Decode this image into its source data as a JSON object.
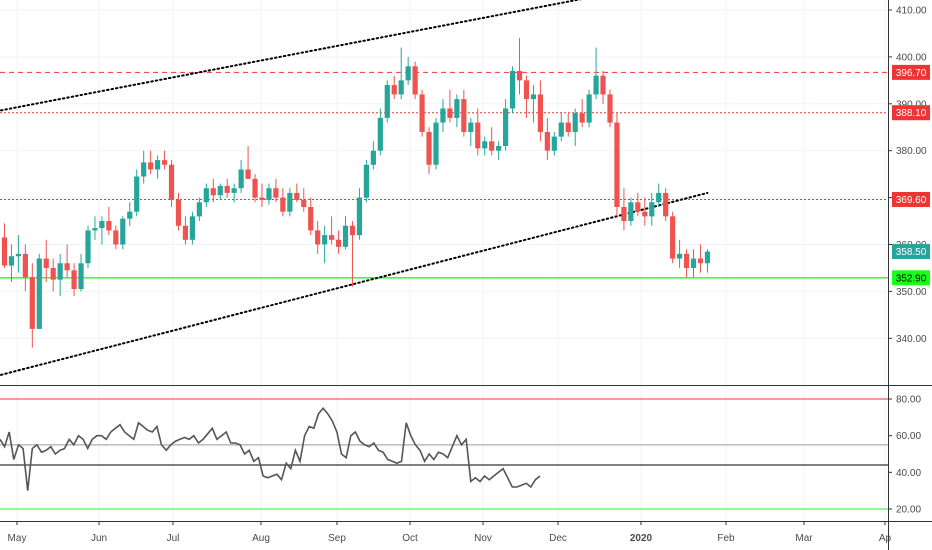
{
  "chart_data": [
    {
      "type": "candlestick",
      "x_axis_labels": [
        "May",
        "Jun",
        "Jul",
        "Aug",
        "Sep",
        "Oct",
        "Nov",
        "Dec",
        "2020",
        "Feb",
        "Mar",
        "Ap"
      ],
      "y_ticks": [
        340,
        350,
        360,
        370,
        380,
        390,
        400,
        410
      ],
      "ylim": [
        330,
        412
      ],
      "price_badges": [
        {
          "value": "396.70",
          "color": "#ef3434"
        },
        {
          "value": "388.10",
          "color": "#ef3434"
        },
        {
          "value": "369.60",
          "color": "#ef3434"
        },
        {
          "value": "358.50",
          "color": "#26a69a"
        },
        {
          "value": "352.90",
          "color": "#1aff1a"
        }
      ],
      "horizontal_lines": [
        {
          "value": 396.7,
          "color": "#ef3434",
          "style": "dashed"
        },
        {
          "value": 388.1,
          "color": "#ef3434",
          "style": "dotted"
        },
        {
          "value": 369.6,
          "color": "#ef3434",
          "style": "dotted"
        },
        {
          "value": 352.9,
          "color": "#1aff1a",
          "style": "solid"
        }
      ],
      "trend_lines": [
        {
          "from": [
            0,
            388.6
          ],
          "to": [
            87,
            413.5
          ]
        },
        {
          "from": [
            0,
            332.2
          ],
          "to": [
            101,
            371.0
          ]
        }
      ],
      "candles": [
        [
          361.5,
          364.5,
          355.0,
          355.5
        ],
        [
          355.5,
          360.0,
          352.0,
          357.5
        ],
        [
          357.5,
          362.0,
          354.0,
          358.0
        ],
        [
          358.0,
          360.0,
          350.0,
          353.0
        ],
        [
          353.0,
          356.0,
          338.0,
          342.0
        ],
        [
          342.0,
          358.0,
          342.0,
          357.0
        ],
        [
          357.0,
          361.0,
          352.0,
          355.0
        ],
        [
          355.0,
          357.0,
          350.0,
          352.5
        ],
        [
          352.5,
          358.0,
          349.0,
          356.0
        ],
        [
          356.0,
          360.0,
          353.0,
          354.5
        ],
        [
          354.5,
          356.0,
          349.0,
          350.5
        ],
        [
          350.5,
          358.0,
          350.0,
          356.0
        ],
        [
          356.0,
          364.0,
          355.0,
          363.0
        ],
        [
          363.0,
          366.0,
          361.0,
          363.5
        ],
        [
          363.5,
          366.0,
          360.0,
          365.0
        ],
        [
          365.0,
          368.0,
          362.0,
          363.0
        ],
        [
          363.0,
          364.0,
          359.0,
          360.0
        ],
        [
          360.0,
          366.0,
          359.0,
          365.5
        ],
        [
          365.5,
          369.0,
          364.0,
          367.0
        ],
        [
          367.0,
          376.0,
          366.0,
          374.5
        ],
        [
          374.5,
          380.0,
          373.0,
          377.5
        ],
        [
          377.5,
          380.0,
          375.0,
          376.0
        ],
        [
          376.0,
          379.0,
          374.0,
          378.0
        ],
        [
          378.0,
          380.0,
          376.0,
          377.0
        ],
        [
          377.0,
          378.0,
          368.0,
          369.5
        ],
        [
          369.5,
          371.0,
          363.0,
          364.0
        ],
        [
          364.0,
          366.0,
          360.0,
          361.0
        ],
        [
          361.0,
          367.0,
          360.0,
          366.0
        ],
        [
          366.0,
          370.0,
          365.0,
          369.0
        ],
        [
          369.0,
          373.0,
          368.0,
          372.0
        ],
        [
          372.0,
          374.0,
          369.0,
          370.5
        ],
        [
          370.5,
          373.0,
          369.5,
          372.5
        ],
        [
          372.5,
          374.0,
          370.0,
          371.0
        ],
        [
          371.0,
          373.0,
          369.0,
          372.0
        ],
        [
          372.0,
          378.0,
          371.0,
          376.0
        ],
        [
          376.0,
          381.0,
          374.0,
          374.0
        ],
        [
          374.0,
          375.0,
          369.0,
          370.0
        ],
        [
          370.0,
          373.0,
          368.0,
          369.5
        ],
        [
          369.5,
          373.0,
          368.5,
          372.0
        ],
        [
          372.0,
          374.0,
          369.0,
          370.0
        ],
        [
          370.0,
          372.0,
          366.0,
          367.0
        ],
        [
          367.0,
          372.0,
          366.0,
          371.0
        ],
        [
          371.0,
          373.0,
          369.0,
          369.5
        ],
        [
          369.5,
          372.0,
          367.0,
          368.0
        ],
        [
          368.0,
          370.0,
          362.0,
          363.0
        ],
        [
          363.0,
          365.0,
          358.0,
          360.0
        ],
        [
          360.0,
          364.0,
          356.0,
          362.0
        ],
        [
          362.0,
          366.0,
          360.0,
          361.0
        ],
        [
          361.0,
          363.0,
          358.0,
          359.5
        ],
        [
          359.5,
          366.0,
          359.0,
          364.0
        ],
        [
          364.0,
          365.0,
          351.0,
          362.0
        ],
        [
          362.0,
          372.0,
          361.0,
          370.0
        ],
        [
          370.0,
          378.0,
          369.0,
          377.0
        ],
        [
          377.0,
          382.0,
          376.0,
          380.0
        ],
        [
          380.0,
          389.0,
          379.0,
          387.0
        ],
        [
          387.0,
          395.0,
          386.0,
          394.0
        ],
        [
          394.0,
          396.0,
          391.0,
          392.0
        ],
        [
          392.0,
          402.0,
          391.0,
          395.0
        ],
        [
          395.0,
          400.0,
          394.0,
          398.0
        ],
        [
          398.0,
          399.0,
          391.0,
          392.0
        ],
        [
          392.0,
          393.0,
          383.0,
          384.0
        ],
        [
          384.0,
          385.0,
          375.0,
          377.0
        ],
        [
          377.0,
          387.0,
          376.0,
          386.0
        ],
        [
          386.0,
          391.0,
          384.0,
          389.0
        ],
        [
          389.0,
          393.0,
          386.0,
          387.0
        ],
        [
          387.0,
          392.0,
          385.0,
          391.0
        ],
        [
          391.0,
          393.0,
          383.0,
          384.0
        ],
        [
          384.0,
          387.0,
          381.0,
          386.0
        ],
        [
          386.0,
          389.0,
          379.0,
          380.5
        ],
        [
          380.5,
          383.0,
          379.0,
          382.0
        ],
        [
          382.0,
          385.0,
          379.0,
          380.0
        ],
        [
          380.0,
          382.0,
          378.0,
          381.0
        ],
        [
          381.0,
          391.0,
          380.0,
          389.0
        ],
        [
          389.0,
          398.0,
          388.0,
          397.0
        ],
        [
          397.0,
          404.0,
          392.0,
          395.0
        ],
        [
          395.0,
          396.0,
          387.0,
          391.0
        ],
        [
          391.0,
          394.0,
          386.0,
          392.0
        ],
        [
          392.0,
          395.0,
          382.0,
          384.0
        ],
        [
          384.0,
          387.0,
          378.0,
          380.0
        ],
        [
          380.0,
          384.0,
          379.0,
          383.0
        ],
        [
          383.0,
          388.0,
          382.0,
          386.0
        ],
        [
          386.0,
          388.0,
          383.0,
          384.0
        ],
        [
          384.0,
          389.0,
          381.0,
          388.0
        ],
        [
          388.0,
          391.0,
          385.0,
          386.0
        ],
        [
          386.0,
          393.0,
          385.0,
          392.0
        ],
        [
          392.0,
          402.0,
          391.0,
          396.0
        ],
        [
          396.0,
          397.0,
          390.0,
          392.0
        ],
        [
          392.0,
          393.0,
          385.0,
          386.0
        ],
        [
          386.0,
          388.0,
          366.0,
          368.0
        ],
        [
          368.0,
          372.0,
          363.0,
          365.0
        ],
        [
          365.0,
          370.0,
          364.0,
          369.0
        ],
        [
          369.0,
          371.0,
          366.0,
          367.0
        ],
        [
          367.0,
          370.0,
          364.0,
          366.0
        ],
        [
          366.0,
          371.0,
          364.0,
          369.0
        ],
        [
          369.0,
          373.0,
          368.0,
          371.0
        ],
        [
          371.0,
          372.0,
          365.0,
          366.0
        ],
        [
          366.0,
          367.0,
          356.0,
          357.0
        ],
        [
          357.0,
          361.0,
          355.0,
          358.0
        ],
        [
          358.0,
          359.0,
          353.0,
          355.0
        ],
        [
          355.0,
          359.0,
          353.0,
          357.0
        ],
        [
          357.0,
          360.0,
          354.0,
          356.0
        ],
        [
          356.0,
          359.0,
          354.0,
          358.5
        ]
      ]
    },
    {
      "type": "line",
      "name": "oscillator",
      "y_ticks": [
        20,
        40,
        60,
        80
      ],
      "ylim": [
        15,
        85
      ],
      "reference_lines": [
        {
          "value": 80,
          "color": "#ef3434"
        },
        {
          "value": 55,
          "color": "#999999"
        },
        {
          "value": 44,
          "color": "#000000"
        },
        {
          "value": 20,
          "color": "#1aff1a"
        }
      ],
      "values": [
        58,
        54,
        62,
        47,
        55,
        53,
        30,
        53,
        55,
        51,
        52,
        54,
        50,
        52,
        53,
        58,
        55,
        60,
        58,
        53,
        58,
        60,
        60,
        58,
        62,
        64,
        66,
        62,
        60,
        58,
        67,
        65,
        63,
        62,
        65,
        55,
        52,
        55,
        57,
        58,
        59,
        58,
        60,
        56,
        58,
        61,
        64,
        58,
        60,
        62,
        56,
        56,
        55,
        50,
        52,
        46,
        48,
        38,
        37,
        38,
        39,
        36,
        45,
        42,
        52,
        46,
        60,
        65,
        64,
        72,
        75,
        72,
        68,
        62,
        50,
        48,
        60,
        62,
        57,
        55,
        54,
        56,
        52,
        51,
        47,
        46,
        45,
        46,
        67,
        60,
        55,
        52,
        46,
        50,
        47,
        51,
        50,
        48,
        54,
        60,
        55,
        58,
        35,
        37,
        35,
        38,
        36,
        38,
        40,
        42,
        37,
        32,
        32,
        33,
        34,
        32,
        36,
        38
      ],
      "point_spacing_note": ""
    }
  ]
}
